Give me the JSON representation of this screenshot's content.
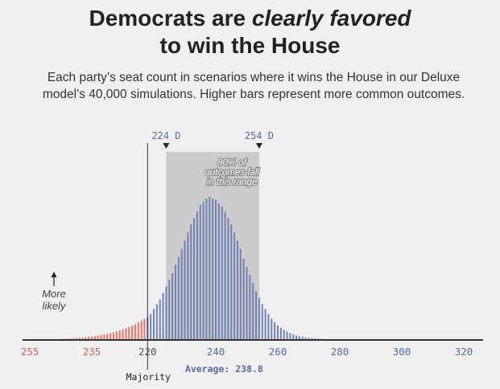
{
  "header": {
    "title_part1": "Democrats are ",
    "title_emph": "clearly favored",
    "title_line2": "to win the House",
    "subtitle_line1": "Each party’s seat count in scenarios where it wins the House in our Deluxe",
    "subtitle_line2": "model’s 40,000 simulations. Higher bars represent more common outcomes."
  },
  "colors": {
    "dem": "#7281b4",
    "rep": "#ea7665",
    "band": "#cccccc",
    "axis": "#333333",
    "dem_text": "#5a6aa6",
    "rep_text": "#d9604f"
  },
  "chart_data": {
    "type": "bar",
    "title": "Democrats are clearly favored to win the House",
    "xlabel": "",
    "ylabel": "",
    "tick_labels": [
      {
        "label": "255",
        "seats_d": 180,
        "party": "R"
      },
      {
        "label": "235",
        "seats_d": 200,
        "party": "R"
      },
      {
        "label": "220",
        "seats_d": 218,
        "party": "neutral"
      },
      {
        "label": "240",
        "seats_d": 240,
        "party": "D"
      },
      {
        "label": "260",
        "seats_d": 260,
        "party": "D"
      },
      {
        "label": "280",
        "seats_d": 280,
        "party": "D"
      },
      {
        "label": "300",
        "seats_d": 300,
        "party": "D"
      },
      {
        "label": "320",
        "seats_d": 320,
        "party": "D"
      }
    ],
    "majority_seats": 218,
    "majority_label": "Majority",
    "range_80": {
      "low": 224,
      "high": 254,
      "low_label": "224 D",
      "high_label": "254 D"
    },
    "range_note": [
      "80% of",
      "outcomes fall",
      "in this range"
    ],
    "average_label": "Average: 238.8",
    "average_seats": 238.8,
    "likely_note": [
      "More",
      "likely"
    ],
    "series": [
      {
        "party": "R",
        "seats_d": [
          188,
          189,
          190,
          191,
          192,
          193,
          194,
          195,
          196,
          197,
          198,
          199,
          200,
          201,
          202,
          203,
          204,
          205,
          206,
          207,
          208,
          209,
          210,
          211,
          212,
          213,
          214,
          215,
          216,
          217
        ],
        "values": [
          0.4,
          0.5,
          0.6,
          0.7,
          0.8,
          0.9,
          1.0,
          1.2,
          1.3,
          1.5,
          1.7,
          1.9,
          2.1,
          2.4,
          2.7,
          3.0,
          3.4,
          3.8,
          4.2,
          4.7,
          5.3,
          5.9,
          6.5,
          7.2,
          8.0,
          8.8,
          9.7,
          10.7,
          11.8,
          13
        ]
      },
      {
        "party": "D",
        "seats_d": [
          218,
          219,
          220,
          221,
          222,
          223,
          224,
          225,
          226,
          227,
          228,
          229,
          230,
          231,
          232,
          233,
          234,
          235,
          236,
          237,
          238,
          239,
          240,
          241,
          242,
          243,
          244,
          245,
          246,
          247,
          248,
          249,
          250,
          251,
          252,
          253,
          254,
          255,
          256,
          257,
          258,
          259,
          260,
          261,
          262,
          263,
          264,
          265,
          266,
          267,
          268,
          269,
          270,
          271,
          272,
          273,
          274,
          275,
          276,
          277,
          278,
          279,
          280,
          281,
          282,
          283,
          284,
          285,
          286,
          287,
          288,
          289,
          290,
          291,
          292,
          293,
          294,
          295,
          296,
          297,
          298,
          299,
          300
        ],
        "values": [
          14,
          16,
          19,
          22,
          25,
          29,
          33,
          37,
          41,
          46,
          51,
          56,
          61,
          66,
          71,
          75,
          79,
          83,
          85,
          87,
          88,
          87,
          86,
          84,
          82,
          79,
          75,
          71,
          66,
          61,
          56,
          50,
          45,
          40,
          35,
          30,
          26,
          22,
          19,
          16,
          13,
          11,
          9,
          7.5,
          6.2,
          5.1,
          4.2,
          3.4,
          2.8,
          2.3,
          1.9,
          1.6,
          1.3,
          1.1,
          0.9,
          0.8,
          0.7,
          0.6,
          0.5,
          0.45,
          0.4,
          0.35,
          0.3,
          0.28,
          0.26,
          0.24,
          0.22,
          0.2,
          0.18,
          0.16,
          0.15,
          0.14,
          0.13,
          0.12,
          0.11,
          0.1,
          0.1,
          0.09,
          0.09,
          0.08,
          0.08,
          0.07,
          0.07
        ]
      }
    ]
  }
}
